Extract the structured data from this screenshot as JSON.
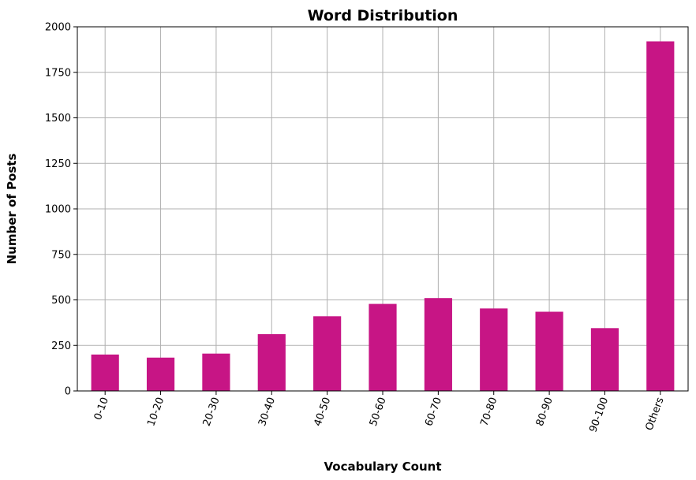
{
  "chart_data": {
    "type": "bar",
    "title": "Word Distribution",
    "xlabel": "Vocabulary Count",
    "ylabel": "Number of Posts",
    "categories": [
      "0-10",
      "10-20",
      "20-30",
      "30-40",
      "40-50",
      "50-60",
      "60-70",
      "70-80",
      "80-90",
      "90-100",
      "Others"
    ],
    "values": [
      200,
      183,
      205,
      312,
      410,
      478,
      510,
      453,
      435,
      345,
      1920
    ],
    "ylim": [
      0,
      2000
    ],
    "yticks": [
      0,
      250,
      500,
      750,
      1000,
      1250,
      1500,
      1750,
      2000
    ],
    "grid": true,
    "bar_color": "#c71585"
  }
}
